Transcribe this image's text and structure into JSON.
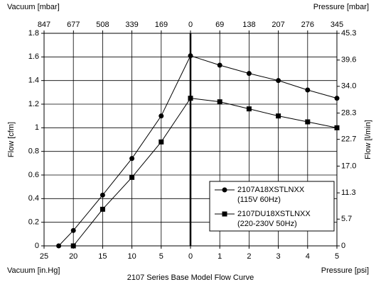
{
  "chart_data": {
    "type": "line",
    "title": "2107 Series Base Model Flow Curve",
    "y_label": "Flow [cfm]",
    "y2_label": "Flow [l/min]",
    "x_vacuum_label": "Vacuum [in.Hg]",
    "x_pressure_label": "Pressure [psi]",
    "top_vacuum_label": "Vacuum [mbar]",
    "top_pressure_label": "Pressure [mbar]",
    "xlim_vacuum": [
      25,
      0
    ],
    "xticks_vacuum": [
      25,
      20,
      15,
      10,
      5,
      0
    ],
    "xlim_pressure": [
      0,
      5
    ],
    "xticks_pressure": [
      0,
      1,
      2,
      3,
      4,
      5
    ],
    "top_xlim_vacuum": [
      847,
      0
    ],
    "top_xticks_vacuum": [
      847,
      677,
      508,
      339,
      169,
      0
    ],
    "top_xlim_pressure": [
      0,
      345
    ],
    "top_xticks_pressure": [
      0,
      69,
      138,
      207,
      276,
      345
    ],
    "ylim": [
      0,
      1.8
    ],
    "yticks": [
      0,
      0.2,
      0.4,
      0.6,
      0.8,
      1,
      1.2,
      1.4,
      1.6,
      1.8
    ],
    "y2lim": [
      0,
      45.3
    ],
    "y2ticks": [
      0,
      5.7,
      11.3,
      {
        "value": 17,
        "label": "17.0"
      },
      22.7,
      28.3,
      {
        "value": 34,
        "label": "34.0"
      },
      39.6,
      45.3
    ],
    "grid": true,
    "series": [
      {
        "name": "2107A18XSTLNXX",
        "subtitle": "(115V 60Hz)",
        "marker": "circle",
        "color": "#000000",
        "x_vacuum": [
          22.5,
          20,
          15,
          10,
          5,
          0
        ],
        "values_vacuum": [
          0,
          0.13,
          0.43,
          0.74,
          1.1,
          1.61
        ],
        "x_pressure": [
          1,
          2,
          3,
          4,
          5
        ],
        "values_pressure": [
          1.53,
          1.46,
          1.4,
          1.32,
          1.25
        ]
      },
      {
        "name": "2107DU18XSTLNXX",
        "subtitle": "(220-230V 50Hz)",
        "marker": "square",
        "color": "#000000",
        "x_vacuum": [
          20,
          15,
          10,
          5,
          0
        ],
        "values_vacuum": [
          0,
          0.31,
          0.58,
          0.88,
          1.25
        ],
        "x_pressure": [
          1,
          2,
          3,
          4,
          5
        ],
        "values_pressure": [
          1.22,
          1.16,
          1.1,
          1.05,
          1.0
        ]
      }
    ]
  }
}
